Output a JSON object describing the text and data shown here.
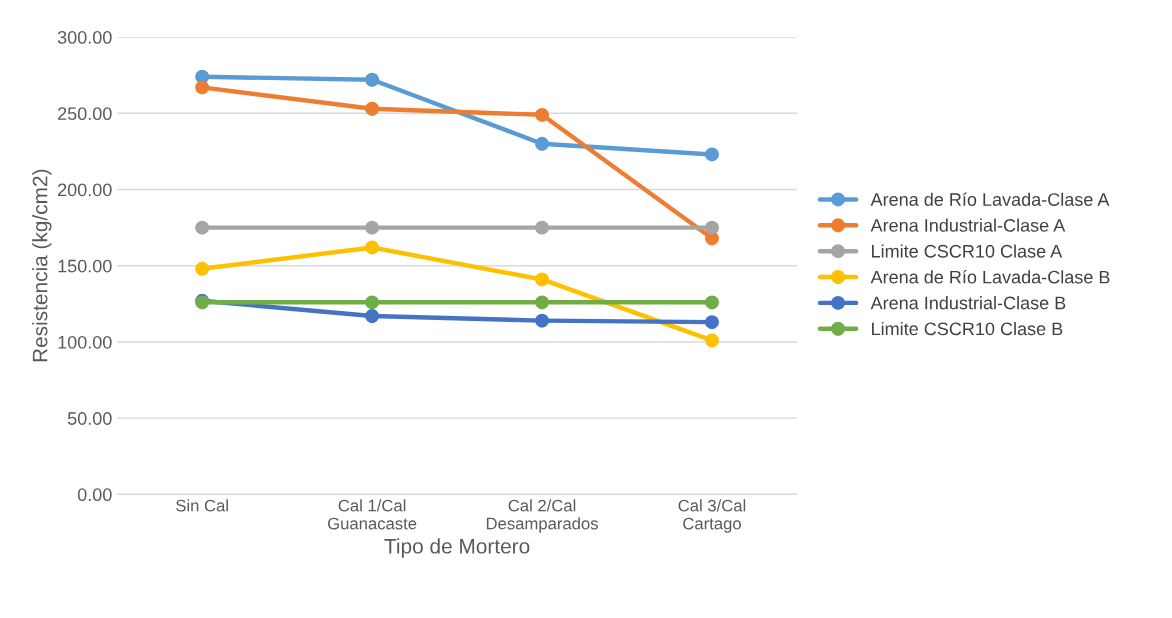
{
  "chart_data": {
    "type": "line",
    "xlabel": "Tipo de Mortero",
    "ylabel": "Resistencia (kg/cm2)",
    "categories": [
      "Sin Cal",
      "Cal 1/Cal Guanacaste",
      "Cal 2/Cal Desamparados",
      "Cal 3/Cal Cartago"
    ],
    "series": [
      {
        "name": "Arena de Río Lavada-Clase A",
        "color": "#5b9bd5",
        "values": [
          274,
          272,
          230,
          223
        ]
      },
      {
        "name": "Arena Industrial-Clase A",
        "color": "#ed7d31",
        "values": [
          267,
          253,
          249,
          168
        ]
      },
      {
        "name": "Limite CSCR10 Clase A",
        "color": "#a5a5a5",
        "values": [
          175,
          175,
          175,
          175
        ]
      },
      {
        "name": "Arena de Río Lavada-Clase B",
        "color": "#ffc000",
        "values": [
          148,
          162,
          141,
          101
        ]
      },
      {
        "name": "Arena Industrial-Clase B",
        "color": "#4472c4",
        "values": [
          127,
          117,
          114,
          113
        ]
      },
      {
        "name": "Limite CSCR10 Clase B",
        "color": "#70ad47",
        "values": [
          126,
          126,
          126,
          126
        ]
      }
    ],
    "ylim": [
      0,
      300
    ],
    "yticks": [
      {
        "value": 0,
        "label": "0.00"
      },
      {
        "value": 50,
        "label": "50.00"
      },
      {
        "value": 100,
        "label": "100.00"
      },
      {
        "value": 150,
        "label": "150.00"
      },
      {
        "value": 200,
        "label": "200.00"
      },
      {
        "value": 250,
        "label": "250.00"
      },
      {
        "value": 300,
        "label": "300.00"
      }
    ],
    "grid": "y",
    "legend": "right",
    "marker": "circle",
    "line_style": "solid"
  }
}
